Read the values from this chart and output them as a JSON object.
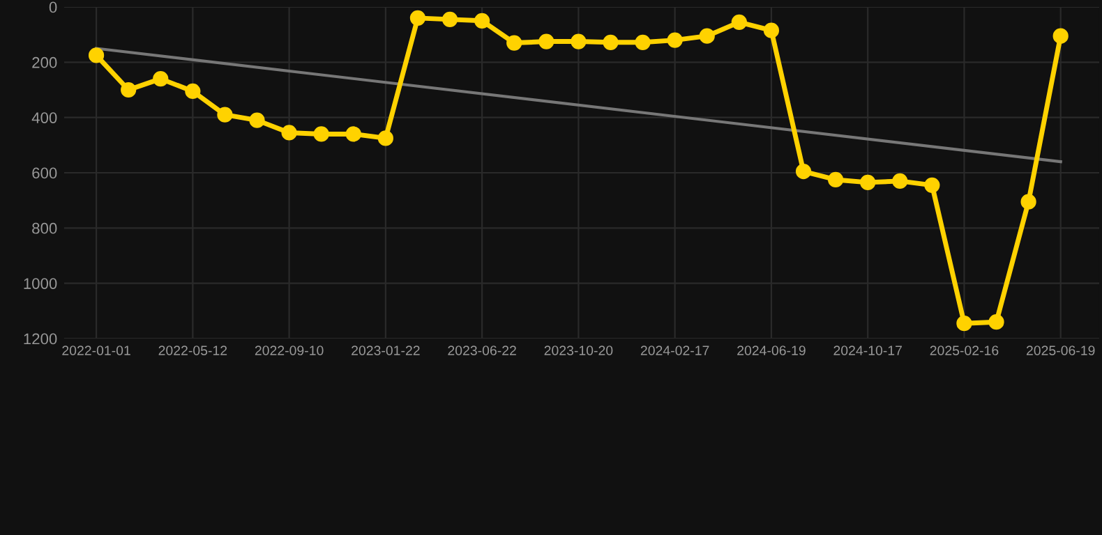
{
  "chart_data": {
    "type": "line",
    "categories": [
      "2022-01-01",
      null,
      null,
      "2022-05-12",
      null,
      null,
      "2022-09-10",
      null,
      null,
      "2023-01-22",
      null,
      null,
      "2023-06-22",
      null,
      null,
      "2023-10-20",
      null,
      null,
      "2024-02-17",
      null,
      null,
      "2024-06-19",
      null,
      null,
      "2024-10-17",
      null,
      null,
      "2025-02-16",
      null,
      null,
      "2025-06-19"
    ],
    "series": [
      {
        "color": "#ffd200",
        "marker": "circle",
        "values": [
          175,
          300,
          260,
          305,
          390,
          410,
          455,
          460,
          460,
          475,
          40,
          45,
          50,
          130,
          125,
          125,
          128,
          128,
          120,
          105,
          55,
          85,
          595,
          625,
          635,
          630,
          645,
          1145,
          1140,
          705,
          105
        ]
      },
      {
        "color": "#777777",
        "marker": "none",
        "values": [
          150,
          null,
          null,
          null,
          null,
          null,
          null,
          null,
          null,
          null,
          null,
          null,
          null,
          null,
          null,
          null,
          null,
          null,
          null,
          null,
          null,
          null,
          null,
          null,
          null,
          null,
          null,
          null,
          null,
          null,
          560
        ]
      }
    ],
    "ylim": [
      1200,
      0
    ],
    "yticks": [
      0,
      200,
      400,
      600,
      800,
      1000,
      1200
    ],
    "grid": true,
    "legend": false
  }
}
